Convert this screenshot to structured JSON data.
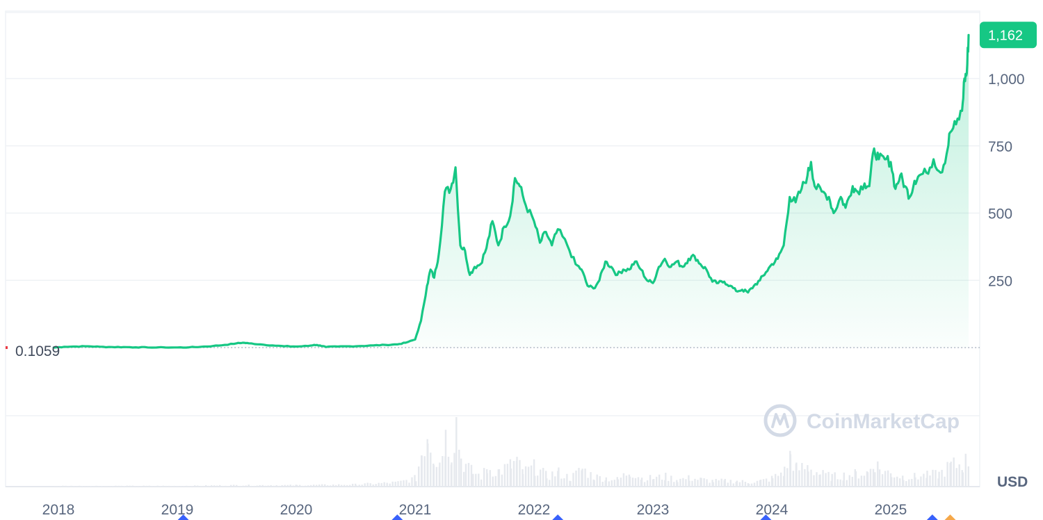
{
  "chart_data": {
    "type": "line",
    "title": "",
    "xlabel": "",
    "ylabel": "",
    "unit": "USD",
    "currency_label": "USD",
    "watermark": "CoinMarketCap",
    "start_price_label": "0.1059",
    "current_price_label": "1,162",
    "x_tick_labels": [
      "2018",
      "2019",
      "2020",
      "2021",
      "2022",
      "2023",
      "2024",
      "2025"
    ],
    "y_tick_labels": [
      "250",
      "500",
      "750",
      "1,000"
    ],
    "y_ticks": [
      250,
      500,
      750,
      1000
    ],
    "ylim": [
      -250,
      1250
    ],
    "xlim": [
      2017.94,
      2025.66
    ],
    "grid": true,
    "line_color": "#16c784",
    "badge_color": "#16c784",
    "baseline_color": "#b0b8c5",
    "event_marker_colors": [
      "#3861fb",
      "#f5a84a"
    ],
    "event_markers_x": [
      2019.05,
      2020.85,
      2022.2,
      2023.95,
      2025.35
    ],
    "event_markers_alt_x": [
      2025.5
    ],
    "series": [
      {
        "values": [
          [
            2017.96,
            0.1
          ],
          [
            2018.05,
            3
          ],
          [
            2018.15,
            4
          ],
          [
            2018.25,
            5
          ],
          [
            2018.35,
            3
          ],
          [
            2018.45,
            2
          ],
          [
            2018.55,
            2
          ],
          [
            2018.65,
            1
          ],
          [
            2018.75,
            0.5
          ],
          [
            2018.9,
            0.3
          ],
          [
            2019.0,
            0.5
          ],
          [
            2019.1,
            1
          ],
          [
            2019.2,
            3
          ],
          [
            2019.3,
            6
          ],
          [
            2019.4,
            10
          ],
          [
            2019.5,
            16
          ],
          [
            2019.55,
            18
          ],
          [
            2019.6,
            16
          ],
          [
            2019.7,
            12
          ],
          [
            2019.8,
            8
          ],
          [
            2019.9,
            5
          ],
          [
            2020.0,
            4
          ],
          [
            2020.1,
            6
          ],
          [
            2020.15,
            10
          ],
          [
            2020.2,
            8
          ],
          [
            2020.25,
            2
          ],
          [
            2020.35,
            4
          ],
          [
            2020.45,
            5
          ],
          [
            2020.55,
            6
          ],
          [
            2020.65,
            8
          ],
          [
            2020.75,
            10
          ],
          [
            2020.85,
            12
          ],
          [
            2020.92,
            18
          ],
          [
            2021.0,
            30
          ],
          [
            2021.05,
            100
          ],
          [
            2021.1,
            230
          ],
          [
            2021.13,
            290
          ],
          [
            2021.16,
            260
          ],
          [
            2021.2,
            350
          ],
          [
            2021.25,
            580
          ],
          [
            2021.3,
            590
          ],
          [
            2021.34,
            670
          ],
          [
            2021.38,
            380
          ],
          [
            2021.42,
            360
          ],
          [
            2021.46,
            270
          ],
          [
            2021.5,
            300
          ],
          [
            2021.55,
            310
          ],
          [
            2021.6,
            370
          ],
          [
            2021.65,
            470
          ],
          [
            2021.7,
            380
          ],
          [
            2021.75,
            450
          ],
          [
            2021.8,
            490
          ],
          [
            2021.84,
            630
          ],
          [
            2021.88,
            600
          ],
          [
            2021.93,
            530
          ],
          [
            2022.0,
            470
          ],
          [
            2022.05,
            390
          ],
          [
            2022.1,
            430
          ],
          [
            2022.15,
            380
          ],
          [
            2022.2,
            440
          ],
          [
            2022.28,
            380
          ],
          [
            2022.35,
            310
          ],
          [
            2022.4,
            290
          ],
          [
            2022.45,
            230
          ],
          [
            2022.5,
            220
          ],
          [
            2022.55,
            250
          ],
          [
            2022.6,
            320
          ],
          [
            2022.65,
            300
          ],
          [
            2022.7,
            270
          ],
          [
            2022.75,
            290
          ],
          [
            2022.8,
            290
          ],
          [
            2022.85,
            320
          ],
          [
            2022.9,
            290
          ],
          [
            2022.95,
            250
          ],
          [
            2023.0,
            240
          ],
          [
            2023.05,
            300
          ],
          [
            2023.1,
            330
          ],
          [
            2023.15,
            300
          ],
          [
            2023.2,
            320
          ],
          [
            2023.25,
            300
          ],
          [
            2023.3,
            330
          ],
          [
            2023.35,
            340
          ],
          [
            2023.4,
            310
          ],
          [
            2023.45,
            290
          ],
          [
            2023.5,
            245
          ],
          [
            2023.55,
            240
          ],
          [
            2023.6,
            245
          ],
          [
            2023.65,
            230
          ],
          [
            2023.7,
            210
          ],
          [
            2023.75,
            215
          ],
          [
            2023.8,
            205
          ],
          [
            2023.85,
            230
          ],
          [
            2023.9,
            250
          ],
          [
            2023.95,
            280
          ],
          [
            2024.0,
            310
          ],
          [
            2024.05,
            330
          ],
          [
            2024.1,
            380
          ],
          [
            2024.15,
            560
          ],
          [
            2024.2,
            540
          ],
          [
            2024.25,
            590
          ],
          [
            2024.3,
            640
          ],
          [
            2024.33,
            690
          ],
          [
            2024.36,
            600
          ],
          [
            2024.42,
            580
          ],
          [
            2024.48,
            560
          ],
          [
            2024.52,
            500
          ],
          [
            2024.58,
            560
          ],
          [
            2024.62,
            520
          ],
          [
            2024.68,
            600
          ],
          [
            2024.72,
            580
          ],
          [
            2024.78,
            610
          ],
          [
            2024.82,
            600
          ],
          [
            2024.86,
            740
          ],
          [
            2024.9,
            700
          ],
          [
            2024.95,
            700
          ],
          [
            2025.0,
            690
          ],
          [
            2025.04,
            590
          ],
          [
            2025.08,
            640
          ],
          [
            2025.12,
            600
          ],
          [
            2025.16,
            560
          ],
          [
            2025.2,
            620
          ],
          [
            2025.24,
            640
          ],
          [
            2025.3,
            650
          ],
          [
            2025.36,
            700
          ],
          [
            2025.42,
            650
          ],
          [
            2025.47,
            720
          ],
          [
            2025.5,
            800
          ],
          [
            2025.55,
            830
          ],
          [
            2025.6,
            880
          ],
          [
            2025.62,
            1000
          ],
          [
            2025.64,
            1020
          ],
          [
            2025.655,
            1162
          ]
        ]
      }
    ],
    "volume": {
      "values": [
        [
          2017.96,
          1
        ],
        [
          2018.5,
          1
        ],
        [
          2019.0,
          1
        ],
        [
          2019.5,
          2
        ],
        [
          2020.0,
          2
        ],
        [
          2020.5,
          3
        ],
        [
          2020.85,
          6
        ],
        [
          2021.0,
          12
        ],
        [
          2021.05,
          50
        ],
        [
          2021.1,
          80
        ],
        [
          2021.15,
          45
        ],
        [
          2021.2,
          35
        ],
        [
          2021.25,
          70
        ],
        [
          2021.3,
          50
        ],
        [
          2021.34,
          95
        ],
        [
          2021.38,
          40
        ],
        [
          2021.42,
          30
        ],
        [
          2021.48,
          20
        ],
        [
          2021.55,
          15
        ],
        [
          2021.6,
          25
        ],
        [
          2021.7,
          22
        ],
        [
          2021.8,
          30
        ],
        [
          2021.85,
          35
        ],
        [
          2021.9,
          20
        ],
        [
          2022.0,
          28
        ],
        [
          2022.1,
          15
        ],
        [
          2022.2,
          20
        ],
        [
          2022.3,
          12
        ],
        [
          2022.4,
          25
        ],
        [
          2022.5,
          14
        ],
        [
          2022.6,
          12
        ],
        [
          2022.7,
          10
        ],
        [
          2022.8,
          22
        ],
        [
          2022.9,
          12
        ],
        [
          2023.0,
          12
        ],
        [
          2023.1,
          14
        ],
        [
          2023.2,
          10
        ],
        [
          2023.3,
          12
        ],
        [
          2023.4,
          10
        ],
        [
          2023.5,
          8
        ],
        [
          2023.6,
          8
        ],
        [
          2023.7,
          8
        ],
        [
          2023.8,
          6
        ],
        [
          2023.9,
          8
        ],
        [
          2024.0,
          12
        ],
        [
          2024.1,
          22
        ],
        [
          2024.15,
          45
        ],
        [
          2024.2,
          25
        ],
        [
          2024.3,
          28
        ],
        [
          2024.4,
          18
        ],
        [
          2024.5,
          14
        ],
        [
          2024.6,
          16
        ],
        [
          2024.7,
          18
        ],
        [
          2024.8,
          20
        ],
        [
          2024.86,
          35
        ],
        [
          2024.9,
          25
        ],
        [
          2025.0,
          18
        ],
        [
          2025.1,
          14
        ],
        [
          2025.2,
          14
        ],
        [
          2025.3,
          16
        ],
        [
          2025.4,
          18
        ],
        [
          2025.5,
          30
        ],
        [
          2025.6,
          32
        ],
        [
          2025.655,
          40
        ]
      ],
      "max": 100
    }
  }
}
